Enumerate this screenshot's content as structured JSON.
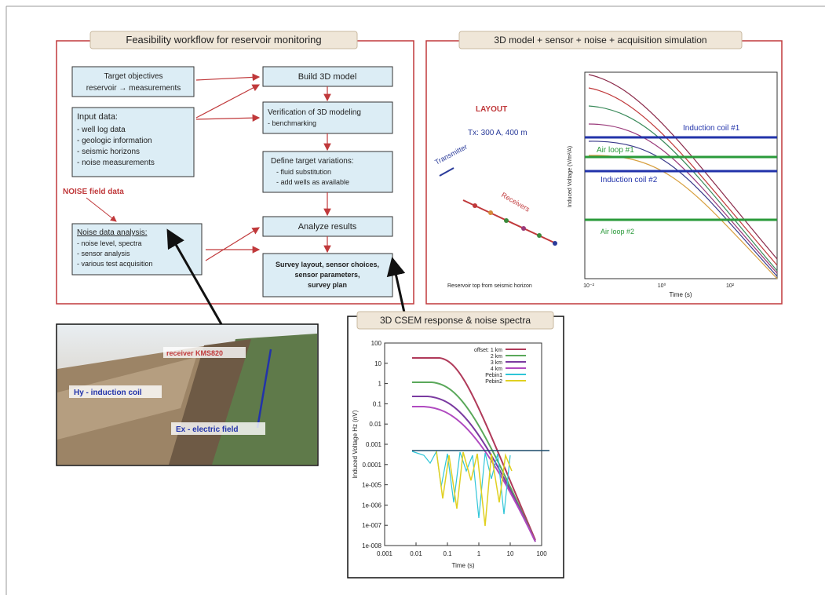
{
  "left_panel": {
    "title": "Feasibility workflow for reservoir monitoring",
    "target_box": [
      "Target objectives",
      "reservoir → measurements"
    ],
    "input_box": [
      "Input data:",
      "- well log data",
      "- geologic information",
      "- seismic horizons",
      "- noise measurements"
    ],
    "noise_label": "NOISE field data",
    "noise_box": [
      "Noise data analysis:",
      "- noise level, spectra",
      "- sensor analysis",
      "- various test acquisition"
    ],
    "build_box": "Build 3D model",
    "verify_box": [
      "Verification of 3D modeling",
      "- benchmarking"
    ],
    "define_box": [
      "Define target variations:",
      "- fluid substitution",
      "- add wells as available"
    ],
    "analyze_box": "Analyze results",
    "survey_box": [
      "Survey layout, sensor choices,",
      "sensor parameters,",
      "survey plan"
    ]
  },
  "right_panel": {
    "title": "3D model + sensor + noise + acquisition simulation",
    "layout_label": "LAYOUT",
    "tx_label": "Tx: 300 A, 400 m",
    "transmitter": "Transmitter",
    "receivers": "Receivers",
    "caption": "Reservoir top from seismic horizon",
    "y_axis": "Induced Voltage (V/m²/A)",
    "x_axis": "Time (s)",
    "x_ticks": [
      "10⁻²",
      "10⁰",
      "10²"
    ],
    "lines": [
      "Induction coil #1",
      "Air loop #1",
      "Induction coil #2",
      "Air loop #2"
    ]
  },
  "photo": {
    "receiver": "receiver KMS820",
    "hy": "Hy - induction coil",
    "ex": "Ex - electric field"
  },
  "bottom_panel": {
    "title": "3D CSEM response & noise spectra",
    "y_axis": "Induced Voltage Hz (nV)",
    "x_axis": "Time (s)",
    "y_ticks": [
      "100",
      "10",
      "1",
      "0.1",
      "0.01",
      "0.001",
      "0.0001",
      "1e-005",
      "1e-006",
      "1e-007",
      "1e-008"
    ],
    "x_ticks": [
      "0.001",
      "0.01",
      "0.1",
      "1",
      "10",
      "100"
    ],
    "legend": [
      "offset: 1 km",
      "2 km",
      "3 km",
      "4 km",
      "Pebin1",
      "Pebin2"
    ]
  }
}
